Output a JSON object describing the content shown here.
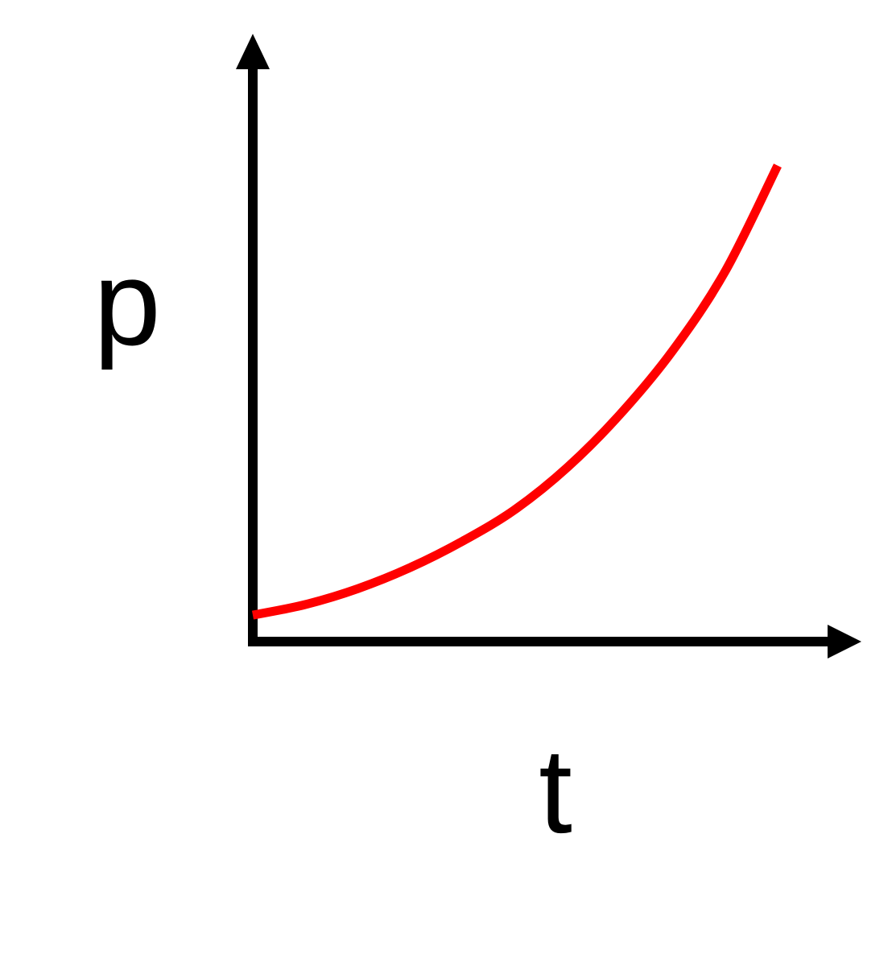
{
  "chart_data": {
    "type": "line",
    "title": "",
    "xlabel": "t",
    "ylabel": "p",
    "grid": false,
    "legend": "none",
    "x_ticks": [],
    "y_ticks": [],
    "xlim": [
      0,
      1
    ],
    "ylim": [
      0,
      1
    ],
    "series": [
      {
        "color": "#ff0000",
        "x": [
          0.0,
          0.1,
          0.2,
          0.3,
          0.4,
          0.5,
          0.6,
          0.7,
          0.8,
          0.9,
          1.0
        ],
        "y": [
          0.05,
          0.07,
          0.1,
          0.14,
          0.19,
          0.25,
          0.33,
          0.43,
          0.55,
          0.7,
          0.9
        ]
      }
    ]
  },
  "colors": {
    "axis": "#000000",
    "curve": "#ff0000",
    "background": "#ffffff"
  }
}
